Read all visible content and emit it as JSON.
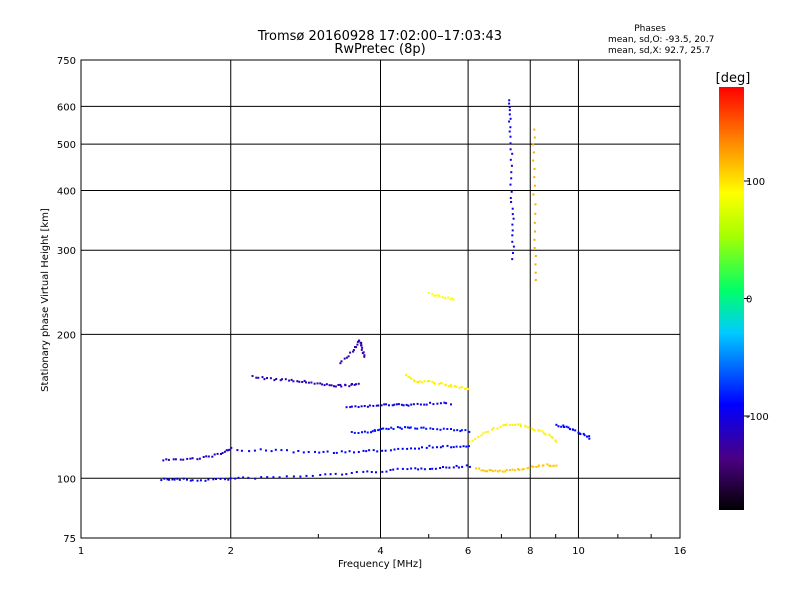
{
  "chart_data": {
    "type": "scatter",
    "title": "Tromsø 20160928 17:02:00–17:03:43",
    "subtitle": "RwPretec (8p)",
    "xlabel": "Frequency [MHz]",
    "ylabel": "Stationary phase Virtual Height [km]",
    "x_scale": "log",
    "y_scale": "log",
    "xlim": [
      1,
      16
    ],
    "ylim": [
      75,
      750
    ],
    "grid": true,
    "x_ticks": [
      {
        "value": 1,
        "label": "1"
      },
      {
        "value": 2,
        "label": "2"
      },
      {
        "value": 4,
        "label": "4"
      },
      {
        "value": 6,
        "label": "6"
      },
      {
        "value": 8,
        "label": "8"
      },
      {
        "value": 10,
        "label": "10"
      },
      {
        "value": 16,
        "label": "16"
      }
    ],
    "y_ticks": [
      {
        "value": 75,
        "label": "75"
      },
      {
        "value": 100,
        "label": "100"
      },
      {
        "value": 200,
        "label": "200"
      },
      {
        "value": 300,
        "label": "300"
      },
      {
        "value": 400,
        "label": "400"
      },
      {
        "value": 500,
        "label": "500"
      },
      {
        "value": 600,
        "label": "600"
      },
      {
        "value": 750,
        "label": "750"
      }
    ],
    "stats": {
      "heading": "Phases",
      "line1": "mean, sd,O: -93.5, 20.7",
      "line2": "mean, sd,X:  92.7, 25.7"
    },
    "colorbar": {
      "label": "[deg]",
      "range": [
        -180,
        180
      ],
      "ticks": [
        {
          "value": 100,
          "label": "100"
        },
        {
          "value": 0,
          "label": "0"
        },
        {
          "value": -100,
          "label": "-100"
        }
      ]
    },
    "traces": [
      {
        "phase": -95,
        "points": [
          [
            1.45,
            100
          ],
          [
            1.55,
            100
          ],
          [
            1.7,
            99.5
          ],
          [
            1.9,
            100
          ],
          [
            2.1,
            100.5
          ],
          [
            2.5,
            101
          ],
          [
            3,
            102
          ],
          [
            3.5,
            103
          ],
          [
            4,
            104
          ],
          [
            4.5,
            105
          ],
          [
            5,
            105.5
          ],
          [
            5.5,
            106
          ],
          [
            6,
            106.5
          ]
        ]
      },
      {
        "phase": -110,
        "points": [
          [
            1.45,
            110
          ],
          [
            1.6,
            110
          ],
          [
            1.75,
            111
          ],
          [
            1.9,
            113
          ],
          [
            2,
            116
          ]
        ]
      },
      {
        "phase": -90,
        "points": [
          [
            2.05,
            115
          ],
          [
            2.4,
            115
          ],
          [
            2.8,
            114
          ],
          [
            3.2,
            114
          ],
          [
            3.6,
            114
          ],
          [
            4,
            115
          ],
          [
            4.5,
            116
          ],
          [
            5,
            117
          ],
          [
            5.5,
            117
          ],
          [
            6,
            117
          ]
        ]
      },
      {
        "phase": -115,
        "points": [
          [
            2.2,
            164
          ],
          [
            2.4,
            162
          ],
          [
            2.6,
            161
          ],
          [
            2.8,
            160
          ],
          [
            3,
            158
          ],
          [
            3.2,
            157
          ],
          [
            3.4,
            157
          ],
          [
            3.6,
            158
          ]
        ]
      },
      {
        "phase": -85,
        "points": [
          [
            3.5,
            125
          ],
          [
            3.8,
            126
          ],
          [
            4,
            127
          ],
          [
            4.3,
            128
          ],
          [
            4.6,
            128
          ],
          [
            5,
            128
          ],
          [
            5.5,
            127
          ],
          [
            6,
            126
          ]
        ]
      },
      {
        "phase": -100,
        "points": [
          [
            3.4,
            142
          ],
          [
            3.7,
            142
          ],
          [
            4,
            143
          ],
          [
            4.3,
            143
          ],
          [
            4.6,
            143
          ],
          [
            5,
            144
          ],
          [
            5.5,
            144
          ]
        ]
      },
      {
        "phase": -120,
        "points": [
          [
            3.3,
            175
          ],
          [
            3.5,
            185
          ],
          [
            3.6,
            195
          ],
          [
            3.65,
            190
          ],
          [
            3.7,
            180
          ]
        ]
      },
      {
        "phase": 95,
        "points": [
          [
            4.5,
            165
          ],
          [
            4.7,
            160
          ],
          [
            5,
            160
          ],
          [
            5.3,
            158
          ],
          [
            5.6,
            156
          ],
          [
            6,
            155
          ]
        ]
      },
      {
        "phase": 90,
        "points": [
          [
            5,
            245
          ],
          [
            5.3,
            240
          ],
          [
            5.6,
            238
          ]
        ]
      },
      {
        "phase": 110,
        "points": [
          [
            6.2,
            105
          ],
          [
            6.6,
            104
          ],
          [
            7,
            104
          ],
          [
            7.5,
            105
          ],
          [
            8,
            106
          ],
          [
            8.5,
            107
          ],
          [
            9,
            107
          ]
        ]
      },
      {
        "phase": -100,
        "points": [
          [
            7.25,
            620
          ],
          [
            7.25,
            560
          ],
          [
            7.3,
            480
          ],
          [
            7.3,
            400
          ],
          [
            7.35,
            340
          ],
          [
            7.35,
            290
          ]
        ]
      },
      {
        "phase": 120,
        "points": [
          [
            8.1,
            540
          ],
          [
            8.1,
            430
          ],
          [
            8.15,
            330
          ],
          [
            8.2,
            260
          ]
        ]
      },
      {
        "phase": 95,
        "points": [
          [
            6,
            120
          ],
          [
            6.5,
            125
          ],
          [
            7,
            130
          ],
          [
            7.5,
            130
          ],
          [
            8,
            128
          ],
          [
            8.5,
            125
          ],
          [
            9,
            120
          ]
        ]
      },
      {
        "phase": -90,
        "points": [
          [
            9,
            130
          ],
          [
            9.5,
            128
          ],
          [
            10,
            125
          ],
          [
            10.5,
            122
          ]
        ]
      }
    ]
  }
}
